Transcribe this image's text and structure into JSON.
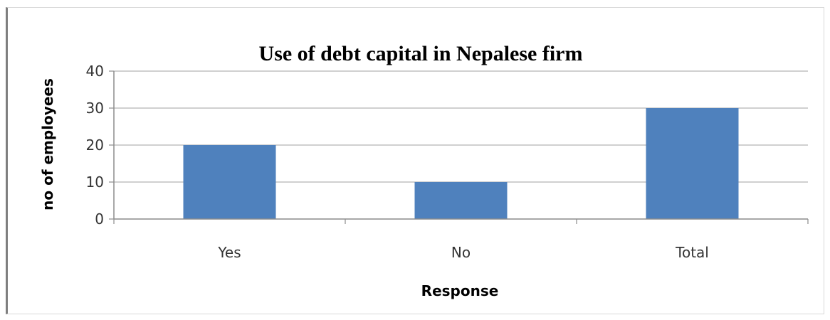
{
  "chart_data": {
    "type": "bar",
    "title": "Use of debt capital in Nepalese firm",
    "xlabel": "Response",
    "ylabel": "no of employees",
    "categories": [
      "Yes",
      "No",
      "Total"
    ],
    "values": [
      20,
      10,
      30
    ],
    "ylim": [
      0,
      40
    ],
    "yticks": [
      0,
      10,
      20,
      30,
      40
    ],
    "grid": true,
    "legend": "none",
    "bar_color": "#4f81bd",
    "grid_color": "#b3b3b3",
    "axis_color": "#8c8c8c"
  }
}
